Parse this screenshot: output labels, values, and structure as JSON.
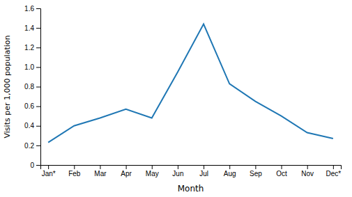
{
  "chart_data": {
    "type": "line",
    "categories": [
      "Jan*",
      "Feb",
      "Mar",
      "Apr",
      "May",
      "Jun",
      "Jul",
      "Aug",
      "Sep",
      "Oct",
      "Nov",
      "Dec*"
    ],
    "values": [
      0.23,
      0.4,
      0.48,
      0.57,
      0.48,
      0.95,
      1.44,
      0.83,
      0.65,
      0.5,
      0.33,
      0.27
    ],
    "xlabel": "Month",
    "ylabel": "Visits per 1,000 population",
    "ylim": [
      0,
      1.6
    ],
    "yticks": [
      0,
      0.2,
      0.4,
      0.6,
      0.8,
      {
        "value": 1.0,
        "label": "1.0"
      },
      1.2,
      1.4,
      1.6
    ],
    "grid": false
  }
}
